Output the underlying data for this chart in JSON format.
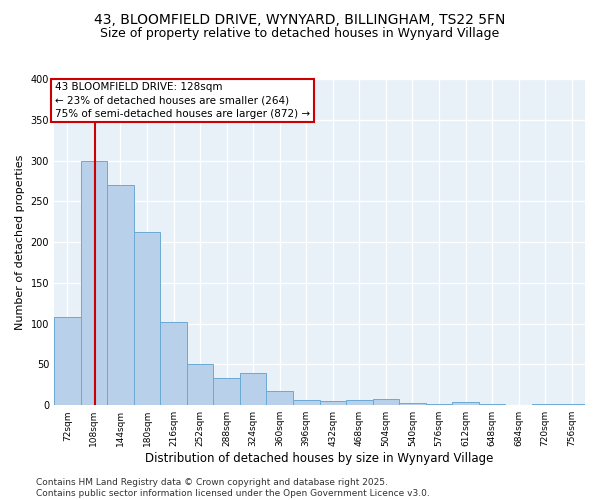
{
  "title_line1": "43, BLOOMFIELD DRIVE, WYNYARD, BILLINGHAM, TS22 5FN",
  "title_line2": "Size of property relative to detached houses in Wynyard Village",
  "xlabel": "Distribution of detached houses by size in Wynyard Village",
  "ylabel": "Number of detached properties",
  "bar_color": "#b8d0ea",
  "bar_edge_color": "#6aaad4",
  "background_color": "#e8f0f8",
  "grid_color": "#ffffff",
  "annotation_box_color": "#cc0000",
  "vline_color": "#cc0000",
  "vline_x": 128,
  "annotation_text": "43 BLOOMFIELD DRIVE: 128sqm\n← 23% of detached houses are smaller (264)\n75% of semi-detached houses are larger (872) →",
  "bin_edges": [
    72,
    108,
    144,
    180,
    216,
    252,
    288,
    324,
    360,
    396,
    432,
    468,
    504,
    540,
    576,
    612,
    648,
    684,
    720,
    756,
    792
  ],
  "bar_heights": [
    108,
    300,
    270,
    213,
    102,
    51,
    33,
    40,
    18,
    6,
    5,
    6,
    8,
    3,
    2,
    4,
    2,
    0,
    2,
    1
  ],
  "xlim": [
    72,
    792
  ],
  "ylim": [
    0,
    400
  ],
  "yticks": [
    0,
    50,
    100,
    150,
    200,
    250,
    300,
    350,
    400
  ],
  "footer_text": "Contains HM Land Registry data © Crown copyright and database right 2025.\nContains public sector information licensed under the Open Government Licence v3.0.",
  "title_fontsize": 10,
  "subtitle_fontsize": 9,
  "xlabel_fontsize": 8.5,
  "ylabel_fontsize": 8,
  "tick_fontsize": 7,
  "footer_fontsize": 6.5,
  "annotation_fontsize": 7.5
}
